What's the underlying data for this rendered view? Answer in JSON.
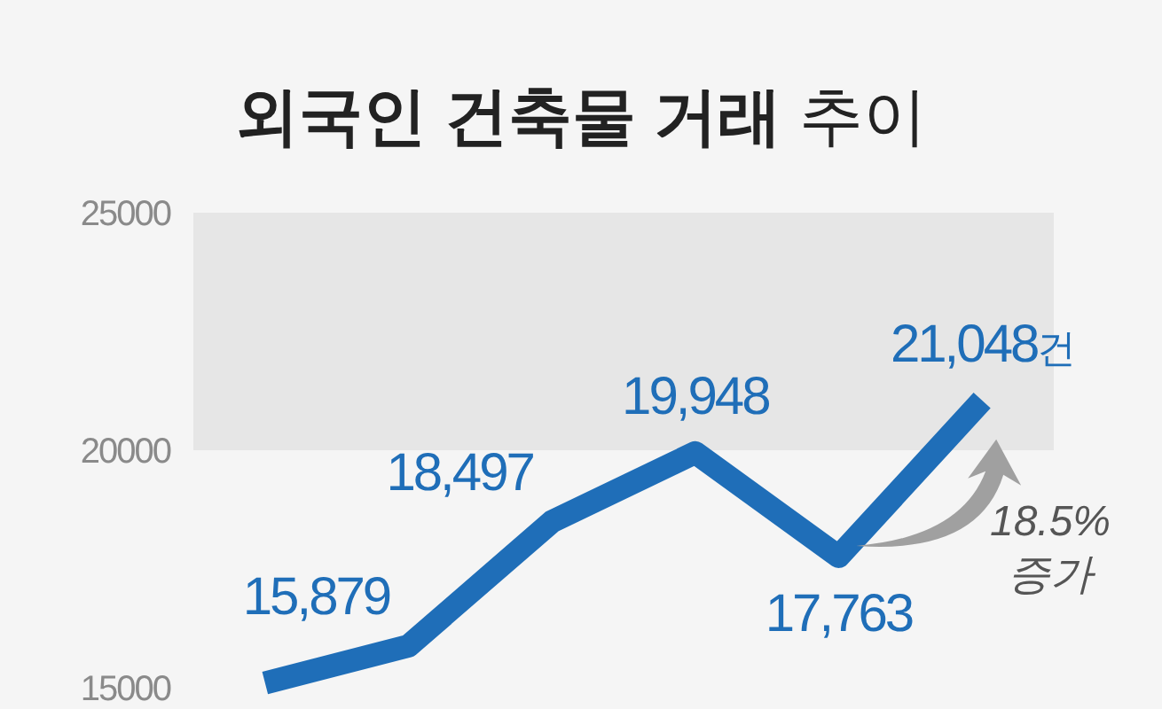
{
  "chart_data": {
    "type": "line",
    "title": "**외국인 건축물 거래** 추이",
    "categories": [
      null,
      null,
      null,
      null,
      null,
      null
    ],
    "series": [
      {
        "color": "#1f6eb8",
        "values": [
          15100,
          15879,
          18497,
          19948,
          17763,
          21048
        ],
        "value_labels": [
          null,
          "15,879",
          "18,497",
          "19,948",
          "17,763",
          "21,048건"
        ]
      }
    ],
    "ylim": [
      15000,
      25000
    ],
    "yticks": [
      15000,
      20000,
      25000
    ],
    "bands": [
      {
        "axis": "y",
        "from": 20000,
        "to": 25000,
        "color": "#e6e6e6"
      }
    ],
    "annotations": [
      "18.5% 증가"
    ],
    "grid": false
  }
}
